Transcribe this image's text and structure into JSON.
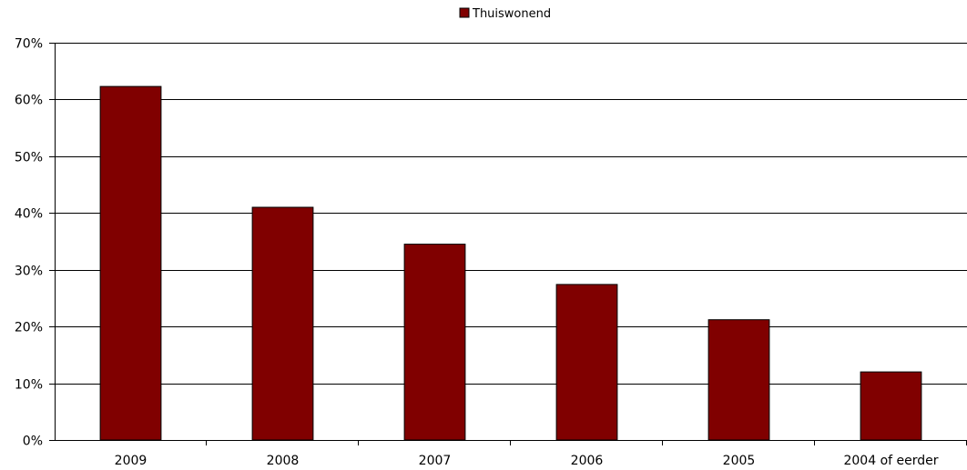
{
  "chart_data": {
    "type": "bar",
    "categories": [
      "2009",
      "2008",
      "2007",
      "2006",
      "2005",
      "2004 of eerder"
    ],
    "series": [
      {
        "name": "Thuiswonend",
        "values": [
          62.3,
          41.0,
          34.5,
          27.4,
          21.2,
          12.0
        ],
        "color": "#800000"
      }
    ],
    "ylim": [
      0,
      70
    ],
    "yticks": [
      0,
      10,
      20,
      30,
      40,
      50,
      60,
      70
    ],
    "ytick_labels": [
      "0%",
      "10%",
      "20%",
      "30%",
      "40%",
      "50%",
      "60%",
      "70%"
    ],
    "grid": true,
    "legend_position": "top-center"
  }
}
